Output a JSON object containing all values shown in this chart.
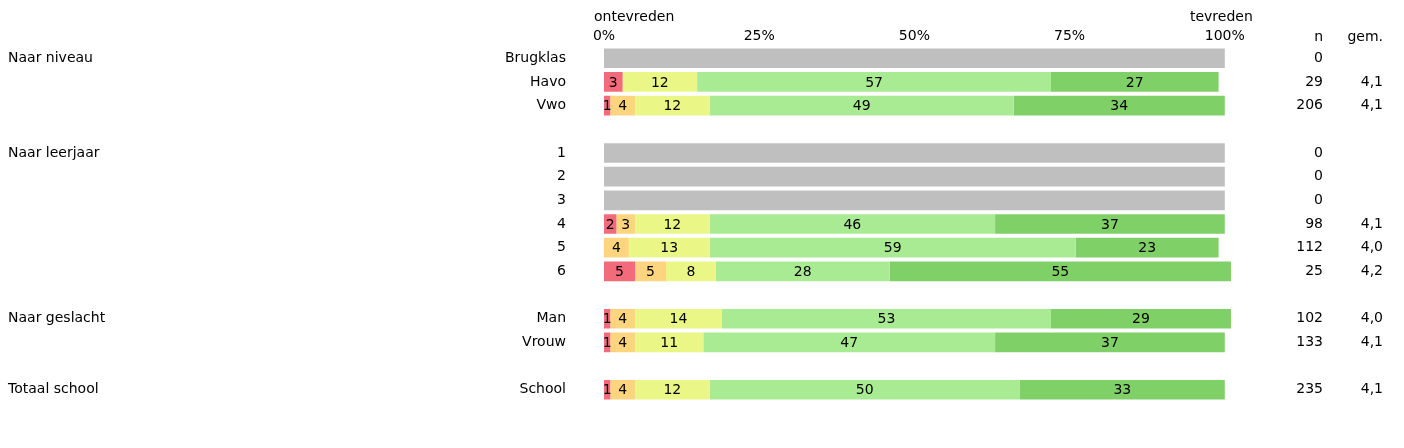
{
  "chart_data": {
    "type": "bar",
    "orientation": "horizontal",
    "stacked": true,
    "grid": false,
    "legend": false,
    "categories": [
      "Brugklas",
      "Havo",
      "Vwo",
      null,
      "1",
      "2",
      "3",
      "4",
      "5",
      "6",
      null,
      "Man",
      "Vrouw",
      null,
      "School"
    ],
    "xlim": [
      0,
      101
    ],
    "xticks": [
      {
        "value": 0,
        "label": "0%"
      },
      {
        "value": 25,
        "label": "25%"
      },
      {
        "value": 50,
        "label": "50%"
      },
      {
        "value": 75,
        "label": "75%"
      },
      {
        "value": 100,
        "label": "100%"
      }
    ],
    "series": [
      {
        "color": "#f26b7a",
        "values": [
          null,
          3,
          1,
          null,
          null,
          null,
          null,
          2,
          null,
          5,
          null,
          1,
          1,
          null,
          1
        ],
        "value_labels": [
          null,
          "3",
          "1",
          null,
          null,
          null,
          null,
          "2",
          null,
          "5",
          null,
          "1",
          "1",
          null,
          "1"
        ]
      },
      {
        "color": "#fdd57e",
        "values": [
          null,
          null,
          4,
          null,
          null,
          null,
          null,
          3,
          4,
          5,
          null,
          4,
          4,
          null,
          4
        ],
        "value_labels": [
          null,
          null,
          "4",
          null,
          null,
          null,
          null,
          "3",
          "4",
          "5",
          null,
          "4",
          "4",
          null,
          "4"
        ]
      },
      {
        "color": "#eaf786",
        "values": [
          null,
          12,
          12,
          null,
          null,
          null,
          null,
          12,
          13,
          8,
          null,
          14,
          11,
          null,
          12
        ],
        "value_labels": [
          null,
          "12",
          "12",
          null,
          null,
          null,
          null,
          "12",
          "13",
          "8",
          null,
          "14",
          "11",
          null,
          "12"
        ]
      },
      {
        "color": "#a8eb93",
        "values": [
          null,
          57,
          49,
          null,
          null,
          null,
          null,
          46,
          59,
          28,
          null,
          53,
          47,
          null,
          50
        ],
        "value_labels": [
          null,
          "57",
          "49",
          null,
          null,
          null,
          null,
          "46",
          "59",
          "28",
          null,
          "53",
          "47",
          null,
          "50"
        ]
      },
      {
        "color": "#80d068",
        "values": [
          null,
          27,
          34,
          null,
          null,
          null,
          null,
          37,
          23,
          55,
          null,
          29,
          37,
          null,
          33
        ],
        "value_labels": [
          null,
          "27",
          "34",
          null,
          null,
          null,
          null,
          "37",
          "23",
          "55",
          null,
          "29",
          "37",
          null,
          "33"
        ]
      },
      {
        "color": "#bfbfbf",
        "values": [
          100,
          null,
          null,
          null,
          100,
          100,
          100,
          null,
          null,
          null,
          null,
          null,
          null,
          null,
          null
        ]
      }
    ],
    "annotations": [
      "Naar niveau",
      "Naar leerjaar",
      "Naar geslacht",
      "Totaal school",
      "n",
      "gem.",
      "ontevreden",
      "tevreden",
      "0",
      "29",
      "4,1",
      "206",
      "4,1",
      "0",
      "0",
      "0",
      "98",
      "4,1",
      "112",
      "4,0",
      "25",
      "4,2",
      "102",
      "4,0",
      "133",
      "4,1",
      "235",
      "4,1"
    ]
  }
}
